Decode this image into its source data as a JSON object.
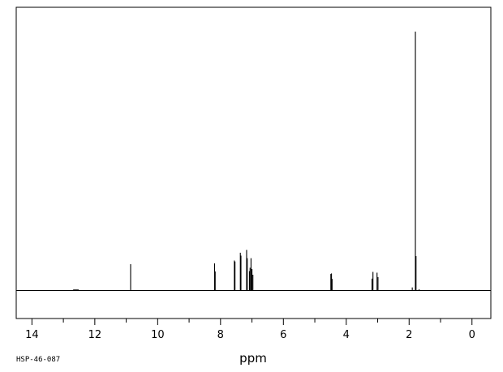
{
  "chart_data": {
    "type": "line",
    "title": "",
    "xlabel": "ppm",
    "ylabel": "",
    "code": "HSP-46-087",
    "xlim": [
      14.5,
      -0.6
    ],
    "x_ticks_major": [
      14,
      12,
      10,
      8,
      6,
      4,
      2,
      0
    ],
    "x_ticks_minor": [
      13,
      11,
      9,
      7,
      5,
      3,
      1
    ],
    "grid": false,
    "series": [
      {
        "peaks": [
          {
            "ppm": 12.6,
            "height": 0.004,
            "width": 0.18
          },
          {
            "ppm": 10.86,
            "height": 0.102,
            "width": 0.006
          },
          {
            "ppm": 8.19,
            "height": 0.105,
            "width": 0.006
          },
          {
            "ppm": 8.17,
            "height": 0.074,
            "width": 0.006
          },
          {
            "ppm": 7.56,
            "height": 0.116,
            "width": 0.006
          },
          {
            "ppm": 7.54,
            "height": 0.112,
            "width": 0.006
          },
          {
            "ppm": 7.37,
            "height": 0.146,
            "width": 0.006
          },
          {
            "ppm": 7.35,
            "height": 0.135,
            "width": 0.006
          },
          {
            "ppm": 7.17,
            "height": 0.157,
            "width": 0.006
          },
          {
            "ppm": 7.15,
            "height": 0.125,
            "width": 0.006
          },
          {
            "ppm": 7.08,
            "height": 0.075,
            "width": 0.006
          },
          {
            "ppm": 7.06,
            "height": 0.088,
            "width": 0.006
          },
          {
            "ppm": 7.03,
            "height": 0.125,
            "width": 0.006
          },
          {
            "ppm": 7.0,
            "height": 0.083,
            "width": 0.006
          },
          {
            "ppm": 6.97,
            "height": 0.061,
            "width": 0.006
          },
          {
            "ppm": 4.49,
            "height": 0.064,
            "width": 0.006
          },
          {
            "ppm": 4.47,
            "height": 0.066,
            "width": 0.006
          },
          {
            "ppm": 4.45,
            "height": 0.045,
            "width": 0.006
          },
          {
            "ppm": 3.18,
            "height": 0.046,
            "width": 0.006
          },
          {
            "ppm": 3.15,
            "height": 0.072,
            "width": 0.006
          },
          {
            "ppm": 3.02,
            "height": 0.069,
            "width": 0.006
          },
          {
            "ppm": 2.99,
            "height": 0.052,
            "width": 0.006
          },
          {
            "ppm": 1.9,
            "height": 0.012,
            "width": 0.006
          },
          {
            "ppm": 1.8,
            "height": 1.0,
            "width": 0.006
          },
          {
            "ppm": 1.78,
            "height": 0.133,
            "width": 0.006
          },
          {
            "ppm": 1.68,
            "height": 0.005,
            "width": 0.006
          }
        ]
      }
    ]
  }
}
